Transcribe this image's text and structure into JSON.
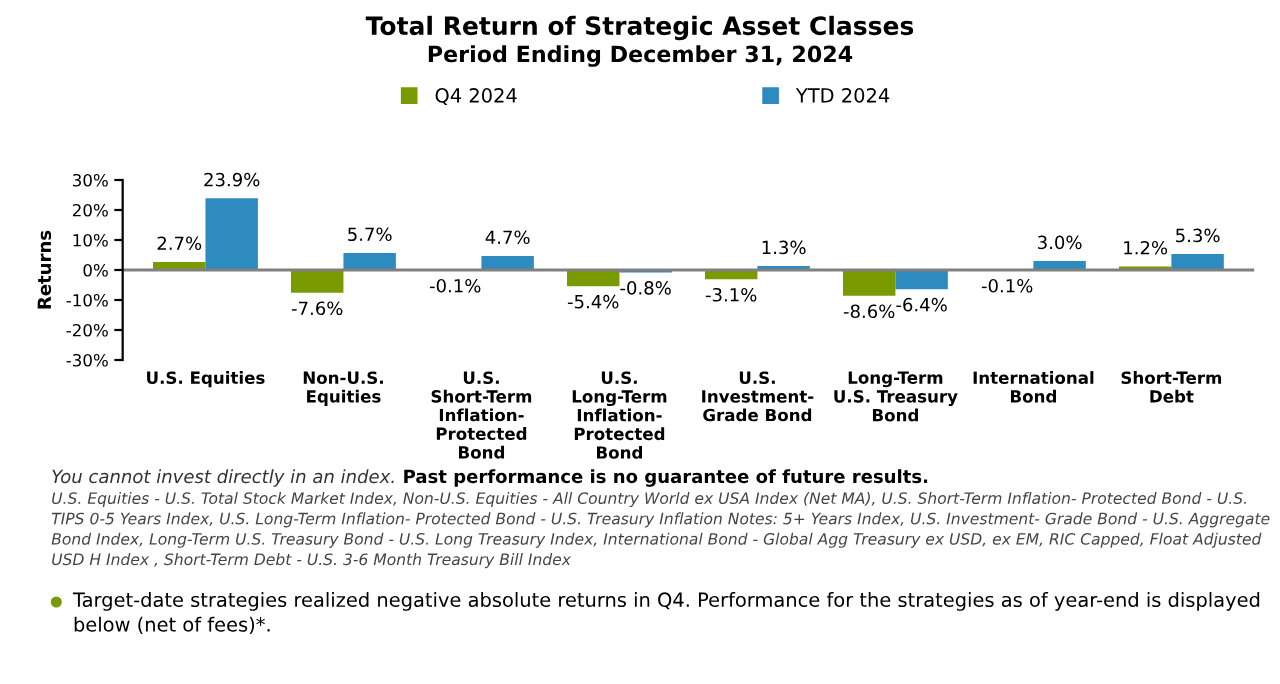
{
  "chart_data": {
    "type": "bar",
    "title": "Total Return of Strategic Asset Classes",
    "subtitle": "Period Ending December 31, 2024",
    "ylabel": "Returns",
    "categories": [
      "U.S. Equities",
      "Non-U.S.\nEquities",
      "U.S.\nShort-Term\nInflation-\nProtected\nBond",
      "U.S.\nLong-Term\nInflation-\nProtected\nBond",
      "U.S.\nInvestment-\nGrade Bond",
      "Long-Term\nU.S. Treasury\nBond",
      "International\nBond",
      "Short-Term\nDebt"
    ],
    "series": [
      {
        "name": "Q4 2024",
        "color": "#7a9a01",
        "values": [
          2.7,
          -7.6,
          -0.1,
          -5.4,
          -3.1,
          -8.6,
          -0.1,
          1.2
        ],
        "value_labels": [
          "2.7%",
          "-7.6%",
          "-0.1%",
          "-5.4%",
          "-3.1%",
          "-8.6%",
          "-0.1%",
          "1.2%"
        ]
      },
      {
        "name": "YTD 2024",
        "color": "#2e8bc0",
        "values": [
          23.9,
          5.7,
          4.7,
          -0.8,
          1.3,
          -6.4,
          3.0,
          5.3
        ],
        "value_labels": [
          "23.9%",
          "5.7%",
          "4.7%",
          "-0.8%",
          "1.3%",
          "-6.4%",
          "3.0%",
          "5.3%"
        ]
      }
    ],
    "ylim": [
      -30,
      30
    ],
    "yticks": [
      {
        "value": -30,
        "label": "-30%"
      },
      {
        "value": -20,
        "label": "-20%"
      },
      {
        "value": -10,
        "label": "-10%"
      },
      {
        "value": 0,
        "label": "0%"
      },
      {
        "value": 10,
        "label": "10%"
      },
      {
        "value": 20,
        "label": "20%"
      },
      {
        "value": 30,
        "label": "30%"
      }
    ],
    "grid": false,
    "legend": "top",
    "ref_lines": [
      {
        "axis": "y",
        "value": 0,
        "color": "#808080"
      }
    ],
    "annotations": [
      "You cannot invest directly in an index.",
      "Past performance is no guarantee of future results.",
      "U.S. Equities - U.S. Total Stock Market Index, Non-U.S. Equities - All Country World ex USA Index (Net MA), U.S. Short-Term Inflation- Protected Bond - U.S. TIPS 0-5 Years Index, U.S. Long-Term Inflation- Protected Bond - U.S. Treasury Inflation Notes: 5+ Years Index, U.S. Investment- Grade Bond - U.S. Aggregate Bond Index, Long-Term U.S. Treasury Bond - U.S. Long Treasury Index, International Bond - Global Agg Treasury ex USD, ex EM, RIC Capped, Float Adjusted USD H Index , Short-Term Debt - U.S. 3-6 Month Treasury Bill Index",
      "Target-date strategies realized negative absolute returns in Q4. Performance for the strategies as of year-end is displayed below (net of fees)*."
    ]
  }
}
